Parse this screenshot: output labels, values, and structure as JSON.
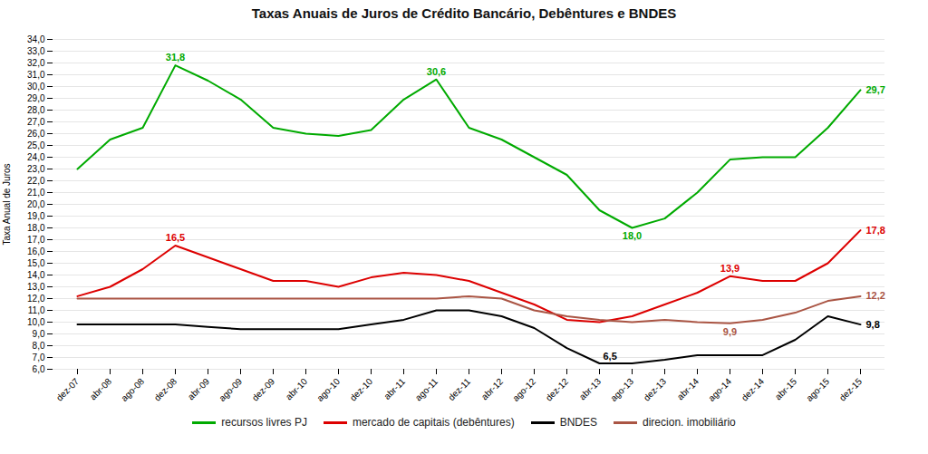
{
  "chart_data": {
    "type": "line",
    "title": "Taxas Anuais de Juros de Crédito Bancário, Debêntures e BNDES",
    "ylabel": "Taxa Anual de Juros",
    "categories": [
      "dez-07",
      "abr-08",
      "ago-08",
      "dez-08",
      "abr-09",
      "ago-09",
      "dez-09",
      "abr-10",
      "ago-10",
      "dez-10",
      "abr-11",
      "ago-11",
      "dez-11",
      "abr-12",
      "ago-12",
      "dez-12",
      "abr-13",
      "ago-13",
      "dez-13",
      "abr-14",
      "ago-14",
      "dez-14",
      "abr-15",
      "ago-15",
      "dez-15"
    ],
    "series": [
      {
        "name": "recursos livres PJ",
        "color": "#00aa00",
        "values": [
          23.0,
          25.5,
          26.5,
          31.8,
          30.5,
          28.9,
          26.5,
          26.0,
          25.8,
          26.3,
          28.9,
          30.6,
          26.5,
          25.5,
          24.0,
          22.5,
          19.5,
          18.0,
          18.8,
          21.0,
          23.8,
          24.0,
          24.0,
          26.5,
          29.7
        ]
      },
      {
        "name": "mercado de capitais (debêntures)",
        "color": "#dd0000",
        "values": [
          12.2,
          13.0,
          14.5,
          16.5,
          15.5,
          14.5,
          13.5,
          13.5,
          13.0,
          13.8,
          14.2,
          14.0,
          13.5,
          12.5,
          11.5,
          10.2,
          10.0,
          10.5,
          11.5,
          12.5,
          13.9,
          13.5,
          13.5,
          15.0,
          17.8
        ]
      },
      {
        "name": "BNDES",
        "color": "#000000",
        "values": [
          9.8,
          9.8,
          9.8,
          9.8,
          9.6,
          9.4,
          9.4,
          9.4,
          9.4,
          9.8,
          10.2,
          11.0,
          11.0,
          10.5,
          9.5,
          7.8,
          6.5,
          6.5,
          6.8,
          7.2,
          7.2,
          7.2,
          8.5,
          10.5,
          9.8
        ]
      },
      {
        "name": "direcion. imobiliário",
        "color": "#aa5544",
        "values": [
          12.0,
          12.0,
          12.0,
          12.0,
          12.0,
          12.0,
          12.0,
          12.0,
          12.0,
          12.0,
          12.0,
          12.0,
          12.2,
          12.0,
          11.0,
          10.5,
          10.2,
          10.0,
          10.2,
          10.0,
          9.9,
          10.2,
          10.8,
          11.8,
          12.2
        ]
      }
    ],
    "ylim": [
      6.0,
      34.0
    ],
    "yticks": [
      {
        "value": 6.0,
        "label": "6,0"
      },
      {
        "value": 7.0,
        "label": "7,0"
      },
      {
        "value": 8.0,
        "label": "8,0"
      },
      {
        "value": 9.0,
        "label": "9,0"
      },
      {
        "value": 10.0,
        "label": "10,0"
      },
      {
        "value": 11.0,
        "label": "11,0"
      },
      {
        "value": 12.0,
        "label": "12,0"
      },
      {
        "value": 13.0,
        "label": "13,0"
      },
      {
        "value": 14.0,
        "label": "14,0"
      },
      {
        "value": 15.0,
        "label": "15,0"
      },
      {
        "value": 16.0,
        "label": "16,0"
      },
      {
        "value": 17.0,
        "label": "17,0"
      },
      {
        "value": 18.0,
        "label": "18,0"
      },
      {
        "value": 19.0,
        "label": "19,0"
      },
      {
        "value": 20.0,
        "label": "20,0"
      },
      {
        "value": 21.0,
        "label": "21,0"
      },
      {
        "value": 22.0,
        "label": "22,0"
      },
      {
        "value": 23.0,
        "label": "23,0"
      },
      {
        "value": 24.0,
        "label": "24,0"
      },
      {
        "value": 25.0,
        "label": "25,0"
      },
      {
        "value": 26.0,
        "label": "26,0"
      },
      {
        "value": 27.0,
        "label": "27,0"
      },
      {
        "value": 28.0,
        "label": "28,0"
      },
      {
        "value": 29.0,
        "label": "29,0"
      },
      {
        "value": 30.0,
        "label": "30,0"
      },
      {
        "value": 31.0,
        "label": "31,0"
      },
      {
        "value": 32.0,
        "label": "32,0"
      },
      {
        "value": 33.0,
        "label": "33,0"
      },
      {
        "value": 34.0,
        "label": "34,0"
      }
    ],
    "grid": true,
    "legend": "bottom",
    "annotations": [
      {
        "series": "recursos livres PJ",
        "x": "dez-08",
        "y": 31.8,
        "text": "31,8"
      },
      {
        "series": "recursos livres PJ",
        "x": "ago-11",
        "y": 30.6,
        "text": "30,6"
      },
      {
        "series": "recursos livres PJ",
        "x": "ago-13",
        "y": 18.0,
        "text": "18,0"
      },
      {
        "series": "recursos livres PJ",
        "x": "dez-15",
        "y": 29.7,
        "text": "29,7"
      },
      {
        "series": "mercado de capitais (debêntures)",
        "x": "dez-08",
        "y": 16.5,
        "text": "16,5"
      },
      {
        "series": "mercado de capitais (debêntures)",
        "x": "ago-14",
        "y": 13.9,
        "text": "13,9"
      },
      {
        "series": "mercado de capitais (debêntures)",
        "x": "dez-15",
        "y": 17.8,
        "text": "17,8"
      },
      {
        "series": "BNDES",
        "x": "abr-13",
        "y": 6.5,
        "text": "6,5"
      },
      {
        "series": "BNDES",
        "x": "dez-15",
        "y": 9.8,
        "text": "9,8"
      },
      {
        "series": "direcion. imobiliário",
        "x": "ago-14",
        "y": 9.9,
        "text": "9,9"
      },
      {
        "series": "direcion. imobiliário",
        "x": "dez-15",
        "y": 12.2,
        "text": "12,2"
      }
    ]
  }
}
